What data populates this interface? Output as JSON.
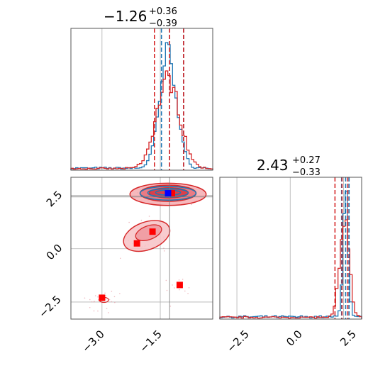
{
  "chart_data": [
    {
      "type": "histogram",
      "panel": "top-left",
      "title": {
        "value": "−1.26",
        "plus": "+0.36",
        "minus": "−0.39"
      },
      "xlim": [
        -3.8,
        -0.15
      ],
      "xticks": [
        -3.0,
        -1.5
      ],
      "grid": true,
      "series": [
        {
          "color": "#1f77b4",
          "peak": -1.3,
          "sigma": 0.22,
          "quantiles": [
            -1.47,
            -1.26,
            -0.9
          ]
        },
        {
          "color": "#d62728",
          "peak": -1.3,
          "sigma": 0.3,
          "quantiles": [
            -1.65,
            -1.26,
            -0.9
          ]
        }
      ]
    },
    {
      "type": "scatter-contour",
      "panel": "bottom-left",
      "xlim": [
        -3.8,
        -0.15
      ],
      "ylim": [
        -3.3,
        3.35
      ],
      "xticks": [
        -3.0,
        -1.5
      ],
      "yticks": [
        2.5,
        0.0,
        -2.5
      ],
      "xtick_labels": [
        "−3.0",
        "−1.5"
      ],
      "ytick_labels": [
        "2.5",
        "0.0",
        "−2.5"
      ],
      "grid": true,
      "crosshair": {
        "x": -1.26,
        "y": 2.43
      },
      "points_red": [
        {
          "x": -1.2,
          "y": 2.6
        },
        {
          "x": -1.7,
          "y": 0.8
        },
        {
          "x": -2.1,
          "y": 0.25
        },
        {
          "x": -1.0,
          "y": -1.7
        },
        {
          "x": -3.0,
          "y": -2.3
        }
      ],
      "points_blue": [
        {
          "x": -1.3,
          "y": 2.6
        }
      ]
    },
    {
      "type": "histogram",
      "panel": "bottom-right",
      "title": {
        "value": "2.43",
        "plus": "+0.27",
        "minus": "−0.33"
      },
      "xlim": [
        -3.3,
        3.35
      ],
      "xticks": [
        -2.5,
        0.0,
        2.5
      ],
      "xtick_labels": [
        "−2.5",
        "0.0",
        "2.5"
      ],
      "grid": true,
      "series": [
        {
          "color": "#1f77b4",
          "peak": 2.6,
          "sigma": 0.12,
          "quantiles": [
            2.41,
            2.6,
            2.76
          ]
        },
        {
          "color": "#d62728",
          "peak": 2.55,
          "sigma": 0.22,
          "quantiles": [
            2.1,
            2.43,
            2.7
          ]
        }
      ]
    }
  ]
}
